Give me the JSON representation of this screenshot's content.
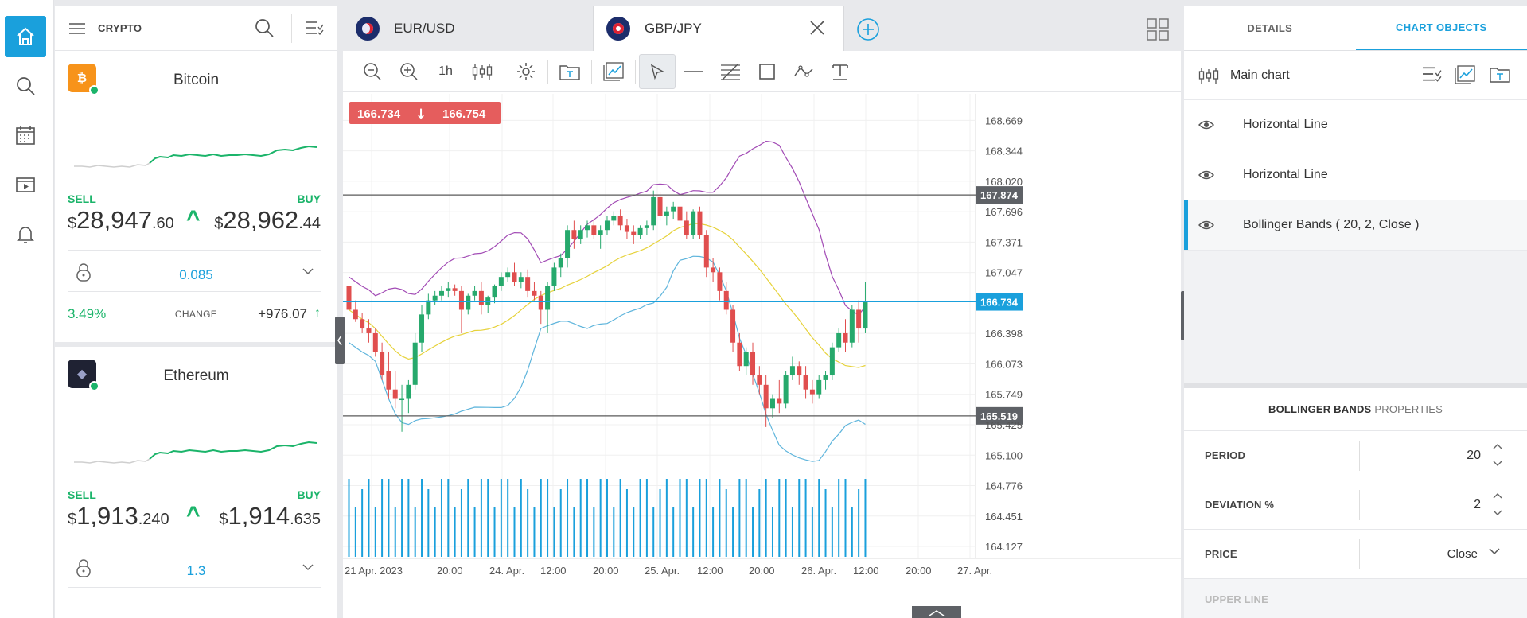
{
  "watchlist": {
    "title": "CRYPTO",
    "coins": [
      {
        "name": "Bitcoin",
        "icon": "bitcoin-icon",
        "icon_color": "#f7931a",
        "icon_glyph": "₿",
        "sell_label": "SELL",
        "buy_label": "BUY",
        "sell_currency": "$",
        "sell_main": "28,947",
        "sell_dec": ".60",
        "buy_currency": "$",
        "buy_main": "28,962",
        "buy_dec": ".44",
        "spread": "0.085",
        "change_pct": "3.49%",
        "change_label": "CHANGE",
        "change_value": "+976.07"
      },
      {
        "name": "Ethereum",
        "icon": "ethereum-icon",
        "icon_color": "#1f2233",
        "icon_glyph": "◆",
        "sell_label": "SELL",
        "buy_label": "BUY",
        "sell_currency": "$",
        "sell_main": "1,913",
        "sell_dec": ".240",
        "buy_currency": "$",
        "buy_main": "1,914",
        "buy_dec": ".635",
        "spread": "1.3"
      }
    ]
  },
  "tabs": [
    {
      "label": "EUR/USD",
      "active": false
    },
    {
      "label": "GBP/JPY",
      "active": true
    }
  ],
  "toolbar": {
    "timeframe": "1h"
  },
  "chart_data": {
    "type": "candlestick",
    "symbol": "GBP/JPY",
    "bid": "166.734",
    "ask": "166.754",
    "direction": "down",
    "y_ticks": [
      "168.669",
      "168.344",
      "168.020",
      "167.696",
      "167.371",
      "167.047",
      "166.398",
      "166.073",
      "165.749",
      "165.425",
      "165.100",
      "164.776",
      "164.451",
      "164.127"
    ],
    "y_range": [
      164.0,
      168.85
    ],
    "x_ticks": [
      "21 Apr. 2023",
      "20:00",
      "24. Apr.",
      "12:00",
      "20:00",
      "25. Apr.",
      "12:00",
      "20:00",
      "26. Apr.",
      "12:00",
      "20:00",
      "27. Apr."
    ],
    "horizontal_lines": [
      {
        "value": 167.874,
        "label": "167.874",
        "color": "#5a5a5a"
      },
      {
        "value": 165.519,
        "label": "165.519",
        "color": "#5a5a5a"
      }
    ],
    "current_price_line": {
      "value": 166.734,
      "label": "166.734",
      "color": "#1aa0dc"
    },
    "candles": [
      [
        166.9,
        166.95,
        166.6,
        166.65
      ],
      [
        166.65,
        166.75,
        166.52,
        166.55
      ],
      [
        166.55,
        166.62,
        166.4,
        166.45
      ],
      [
        166.45,
        166.55,
        166.3,
        166.4
      ],
      [
        166.4,
        166.45,
        166.15,
        166.2
      ],
      [
        166.2,
        166.3,
        165.9,
        165.95
      ],
      [
        166.0,
        166.2,
        165.7,
        165.8
      ],
      [
        165.8,
        166.0,
        165.6,
        165.7
      ],
      [
        165.7,
        165.85,
        165.35,
        165.7
      ],
      [
        165.7,
        165.9,
        165.55,
        165.85
      ],
      [
        165.85,
        166.4,
        165.8,
        166.3
      ],
      [
        166.3,
        166.7,
        166.2,
        166.6
      ],
      [
        166.6,
        166.82,
        166.55,
        166.75
      ],
      [
        166.75,
        166.85,
        166.7,
        166.8
      ],
      [
        166.8,
        166.9,
        166.75,
        166.85
      ],
      [
        166.85,
        166.95,
        166.78,
        166.88
      ],
      [
        166.88,
        166.92,
        166.8,
        166.85
      ],
      [
        166.85,
        166.9,
        166.4,
        166.65
      ],
      [
        166.65,
        166.82,
        166.6,
        166.8
      ],
      [
        166.8,
        166.9,
        166.75,
        166.85
      ],
      [
        166.85,
        166.95,
        166.6,
        166.7
      ],
      [
        166.7,
        166.8,
        166.62,
        166.78
      ],
      [
        166.78,
        166.92,
        166.72,
        166.9
      ],
      [
        166.9,
        167.05,
        166.85,
        167.0
      ],
      [
        167.0,
        167.1,
        166.95,
        167.05
      ],
      [
        167.05,
        167.15,
        166.9,
        166.95
      ],
      [
        166.95,
        167.05,
        166.88,
        167.0
      ],
      [
        167.0,
        167.08,
        166.78,
        166.85
      ],
      [
        166.85,
        166.95,
        166.75,
        166.8
      ],
      [
        166.8,
        166.85,
        166.5,
        166.65
      ],
      [
        166.65,
        166.95,
        166.4,
        166.9
      ],
      [
        166.9,
        167.15,
        166.85,
        167.1
      ],
      [
        167.1,
        167.25,
        167.0,
        167.2
      ],
      [
        167.2,
        167.55,
        167.1,
        167.5
      ],
      [
        167.5,
        167.6,
        167.3,
        167.4
      ],
      [
        167.4,
        167.55,
        167.35,
        167.5
      ],
      [
        167.5,
        167.6,
        167.42,
        167.55
      ],
      [
        167.55,
        167.62,
        167.4,
        167.45
      ],
      [
        167.45,
        167.55,
        167.3,
        167.5
      ],
      [
        167.5,
        167.65,
        167.45,
        167.6
      ],
      [
        167.6,
        167.7,
        167.55,
        167.65
      ],
      [
        167.65,
        167.72,
        167.5,
        167.55
      ],
      [
        167.55,
        167.62,
        167.4,
        167.48
      ],
      [
        167.48,
        167.55,
        167.35,
        167.45
      ],
      [
        167.45,
        167.55,
        167.4,
        167.52
      ],
      [
        167.52,
        167.6,
        167.45,
        167.55
      ],
      [
        167.55,
        167.92,
        167.5,
        167.85
      ],
      [
        167.85,
        167.9,
        167.6,
        167.65
      ],
      [
        167.65,
        167.75,
        167.55,
        167.7
      ],
      [
        167.7,
        167.8,
        167.62,
        167.75
      ],
      [
        167.75,
        167.85,
        167.55,
        167.6
      ],
      [
        167.6,
        167.7,
        167.4,
        167.45
      ],
      [
        167.45,
        167.72,
        167.4,
        167.7
      ],
      [
        167.7,
        167.75,
        167.4,
        167.45
      ],
      [
        167.45,
        167.5,
        167.0,
        167.1
      ],
      [
        167.1,
        167.2,
        166.95,
        167.05
      ],
      [
        167.05,
        167.1,
        166.75,
        166.85
      ],
      [
        166.85,
        166.95,
        166.6,
        166.65
      ],
      [
        166.65,
        166.7,
        166.2,
        166.3
      ],
      [
        166.3,
        166.4,
        166.0,
        166.05
      ],
      [
        166.05,
        166.25,
        165.95,
        166.2
      ],
      [
        166.2,
        166.3,
        165.85,
        165.95
      ],
      [
        165.95,
        166.05,
        165.75,
        165.85
      ],
      [
        165.85,
        165.95,
        165.4,
        165.6
      ],
      [
        165.6,
        165.75,
        165.5,
        165.7
      ],
      [
        165.7,
        165.9,
        165.55,
        165.65
      ],
      [
        165.65,
        166.0,
        165.6,
        165.95
      ],
      [
        165.95,
        166.15,
        165.9,
        166.05
      ],
      [
        166.05,
        166.1,
        165.85,
        165.95
      ],
      [
        165.95,
        166.05,
        165.7,
        165.8
      ],
      [
        165.8,
        165.9,
        165.65,
        165.75
      ],
      [
        165.75,
        165.95,
        165.7,
        165.9
      ],
      [
        165.9,
        166.0,
        165.8,
        165.95
      ],
      [
        165.95,
        166.3,
        165.9,
        166.25
      ],
      [
        166.25,
        166.45,
        166.2,
        166.4
      ],
      [
        166.4,
        166.55,
        166.2,
        166.3
      ],
      [
        166.3,
        166.7,
        166.25,
        166.65
      ],
      [
        166.65,
        166.75,
        166.3,
        166.45
      ],
      [
        166.45,
        166.95,
        166.4,
        166.73
      ]
    ]
  },
  "right_panel": {
    "tabs": [
      "DETAILS",
      "CHART OBJECTS"
    ],
    "main_chart_label": "Main chart",
    "objects": [
      {
        "label": "Horizontal Line",
        "selected": false
      },
      {
        "label": "Horizontal Line",
        "selected": false
      },
      {
        "label": "Bollinger Bands ( 20, 2, Close )",
        "selected": true
      }
    ],
    "properties": {
      "title_main": "BOLLINGER BANDS",
      "title_sub": "PROPERTIES",
      "period_label": "PERIOD",
      "period_value": "20",
      "deviation_label": "DEVIATION %",
      "deviation_value": "2",
      "price_label": "PRICE",
      "price_value": "Close",
      "upper_line_label": "UPPER LINE"
    }
  },
  "colors": {
    "accent": "#1aa0dc",
    "up": "#26a96c",
    "down": "#e04e4e",
    "bb_upper": "#a24bb5",
    "bb_middle": "#e6d23a",
    "bb_lower": "#5fb5dc",
    "volume": "#1aa0dc"
  }
}
